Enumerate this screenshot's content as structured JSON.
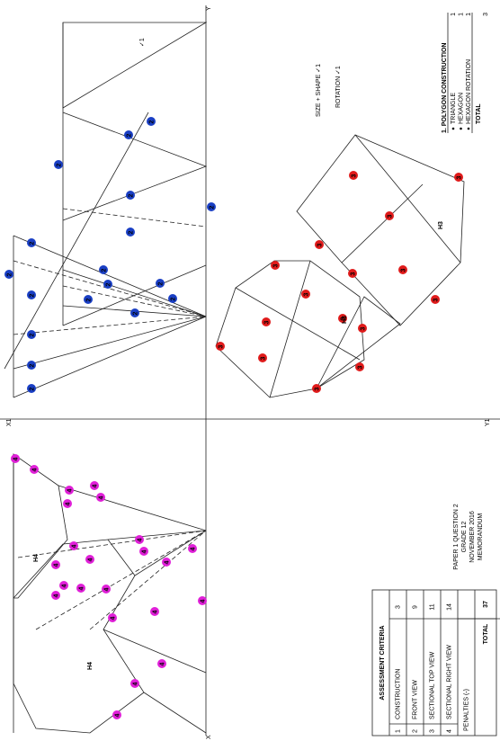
{
  "axes": {
    "y": "Y",
    "x1": "X1",
    "y1": "Y1",
    "x": "X"
  },
  "marks": {
    "front": "2",
    "top": "3",
    "right": "4",
    "check": "✓1"
  },
  "height_labels": {
    "top": "H3",
    "right": "H4"
  },
  "annotations": {
    "size_shape": "SIZE + SHAPE ✓1",
    "rotation": "ROTATION ✓1"
  },
  "polygon_construction": {
    "title": "1. POLYGON CONSTRUCTION",
    "items": [
      {
        "label": "TRIANGLE",
        "mark": 1
      },
      {
        "label": "HEXAGON",
        "mark": 1
      },
      {
        "label": "HEXAGON ROTATION",
        "mark": 1
      }
    ],
    "total": {
      "label": "TOTAL",
      "mark": 3
    }
  },
  "paper_info": [
    "PAPER 1 QUESTION 2",
    "GRADE 12",
    "NOVEMBER 2016",
    "MEMORANDUM"
  ],
  "assessment": {
    "title": "ASSESSMENT CRITERIA",
    "rows": [
      {
        "no": 1,
        "criterion": "CONSTRUCTION",
        "marks": 3
      },
      {
        "no": 2,
        "criterion": "FRONT VIEW",
        "marks": 9
      },
      {
        "no": 3,
        "criterion": "SECTIONAL TOP VIEW",
        "marks": 11
      },
      {
        "no": 4,
        "criterion": "SECTIONAL RIGHT VIEW",
        "marks": 14
      }
    ],
    "penalties": "PENALTIES (-)",
    "total": {
      "label": "TOTAL",
      "marks": 37
    }
  }
}
